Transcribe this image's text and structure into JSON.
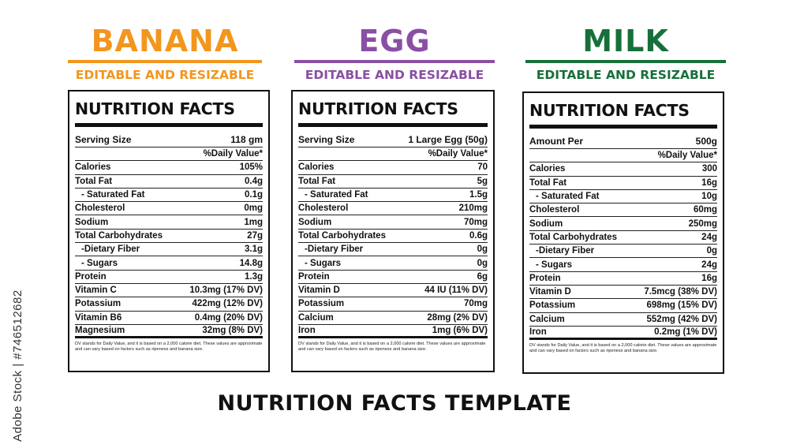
{
  "title": "NUTRITION FACTS TEMPLATE",
  "side_text": "Adobe Stock | #746512682",
  "colors": {
    "banana": "#f2961e",
    "egg": "#8a4fa4",
    "milk": "#17703a"
  },
  "panels": [
    {
      "product": "BANANA",
      "subtitle": "EDITABLE AND RESIZABLE",
      "label_title": "NUTRITION FACTS",
      "serving_label": "Serving Size",
      "serving_value": "118 gm",
      "dv_header": "%Daily Value*",
      "rows": [
        {
          "label": "Calories",
          "value": "105%"
        },
        {
          "label": "Total Fat",
          "value": "0.4g"
        },
        {
          "label": "- Saturated Fat",
          "value": "0.1g"
        },
        {
          "label": "Cholesterol",
          "value": "0mg"
        },
        {
          "label": "Sodium",
          "value": "1mg"
        },
        {
          "label": "Total Carbohydrates",
          "value": "27g"
        },
        {
          "label": "-Dietary Fiber",
          "value": "3.1g"
        },
        {
          "label": "- Sugars",
          "value": "14.8g"
        },
        {
          "label": "Protein",
          "value": "1.3g"
        },
        {
          "label": "Vitamin C",
          "value": "10.3mg (17% DV)"
        },
        {
          "label": "Potassium",
          "value": "422mg (12% DV)"
        },
        {
          "label": "Vitamin B6",
          "value": "0.4mg (20% DV)"
        },
        {
          "label": "Magnesium",
          "value": "32mg (8% DV)"
        }
      ],
      "footnote": "DV stands for Daily Value, and it is based on a 2,000 calorie diet. These values are approximate and can vary based on factors such as ripeness and banana size."
    },
    {
      "product": "EGG",
      "subtitle": "EDITABLE AND RESIZABLE",
      "label_title": "NUTRITION FACTS",
      "serving_label": "Serving Size",
      "serving_value": "1 Large Egg (50g)",
      "dv_header": "%Daily Value*",
      "rows": [
        {
          "label": "Calories",
          "value": "70"
        },
        {
          "label": "Total Fat",
          "value": "5g"
        },
        {
          "label": "- Saturated Fat",
          "value": "1.5g"
        },
        {
          "label": "Cholesterol",
          "value": "210mg"
        },
        {
          "label": "Sodium",
          "value": "70mg"
        },
        {
          "label": "Total Carbohydrates",
          "value": "0.6g"
        },
        {
          "label": "-Dietary Fiber",
          "value": "0g"
        },
        {
          "label": "- Sugars",
          "value": "0g"
        },
        {
          "label": "Protein",
          "value": "6g"
        },
        {
          "label": "Vitamin D",
          "value": "44 IU (11% DV)"
        },
        {
          "label": "Potassium",
          "value": "70mg"
        },
        {
          "label": "Calcium",
          "value": "28mg (2% DV)"
        },
        {
          "label": "Iron",
          "value": "1mg (6% DV)"
        }
      ],
      "footnote": "DV stands for Daily Value, and it is based on a 2,000 calorie diet. These values are approximate and can vary based on factors such as ripeness and banana size."
    },
    {
      "product": "MILK",
      "subtitle": "EDITABLE AND RESIZABLE",
      "label_title": "NUTRITION FACTS",
      "serving_label": "Amount Per",
      "serving_value": "500g",
      "dv_header": "%Daily Value*",
      "rows": [
        {
          "label": "Calories",
          "value": "300"
        },
        {
          "label": "Total Fat",
          "value": "16g"
        },
        {
          "label": "- Saturated Fat",
          "value": "10g"
        },
        {
          "label": "Cholesterol",
          "value": "60mg"
        },
        {
          "label": "Sodium",
          "value": "250mg"
        },
        {
          "label": "Total Carbohydrates",
          "value": "24g"
        },
        {
          "label": "-Dietary Fiber",
          "value": "0g"
        },
        {
          "label": "- Sugars",
          "value": "24g"
        },
        {
          "label": "Protein",
          "value": "16g"
        },
        {
          "label": "Vitamin D",
          "value": "7.5mcg (38% DV)"
        },
        {
          "label": "Potassium",
          "value": "698mg (15% DV)"
        },
        {
          "label": "Calcium",
          "value": "552mg (42% DV)"
        },
        {
          "label": "Iron",
          "value": "0.2mg (1% DV)"
        }
      ],
      "footnote": "DV stands for Daily Value, and it is based on a 2,000 calorie diet. These values are approximate and can vary based on factors such as ripeness and banana size."
    }
  ]
}
